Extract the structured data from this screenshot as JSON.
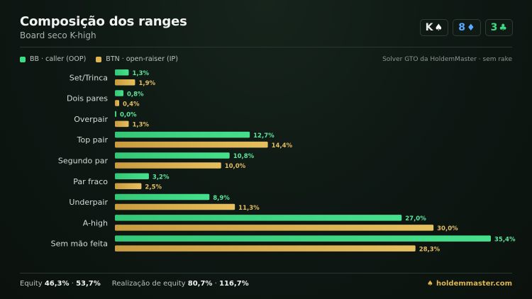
{
  "header": {
    "title": "Composição dos ranges",
    "subtitle": "Board seco K-high"
  },
  "board": [
    {
      "rank": "K",
      "suit": "♠",
      "color": "#ffffff"
    },
    {
      "rank": "8",
      "suit": "♦",
      "color": "#5aa8ff"
    },
    {
      "rank": "3",
      "suit": "♣",
      "color": "#3ddc84"
    }
  ],
  "legend": {
    "bb_label": "BB · caller (OOP)",
    "btn_label": "BTN · open-raiser (IP)",
    "source": "Solver GTO da HoldemMaster · sem rake"
  },
  "colors": {
    "bb": "#3ddc84",
    "btn": "#e0b54e",
    "bb_text": "#5ee39b",
    "btn_text": "#e3bd62"
  },
  "chart_data": {
    "type": "bar",
    "orientation": "horizontal",
    "unit": "%",
    "categories": [
      "Set/Trinca",
      "Dois pares",
      "Overpair",
      "Top pair",
      "Segundo par",
      "Par fraco",
      "Underpair",
      "A-high",
      "Sem mão feita"
    ],
    "series": [
      {
        "name": "BB · caller (OOP)",
        "values": [
          1.3,
          0.8,
          0.0,
          12.7,
          10.8,
          3.2,
          8.9,
          27.0,
          35.4
        ],
        "labels": [
          "1,3%",
          "0,8%",
          "0,0%",
          "12,7%",
          "10,8%",
          "3,2%",
          "8,9%",
          "27,0%",
          "35,4%"
        ]
      },
      {
        "name": "BTN · open-raiser (IP)",
        "values": [
          1.9,
          0.4,
          1.3,
          14.4,
          10.0,
          2.5,
          11.3,
          30.0,
          28.3
        ],
        "labels": [
          "1,9%",
          "0,4%",
          "1,3%",
          "14,4%",
          "10,0%",
          "2,5%",
          "11,3%",
          "30,0%",
          "28,3%"
        ]
      }
    ],
    "xlim": [
      0,
      35.4
    ]
  },
  "footer": {
    "equity_label": "Equity",
    "equity_bb": "46,3%",
    "sep1": "·",
    "equity_btn": "53,7%",
    "realization_label": "Realização de equity",
    "real_bb": "80,7%",
    "sep2": "·",
    "real_btn": "116,7%",
    "brand": "holdemmaster.com",
    "brand_icon": "spade-icon"
  }
}
